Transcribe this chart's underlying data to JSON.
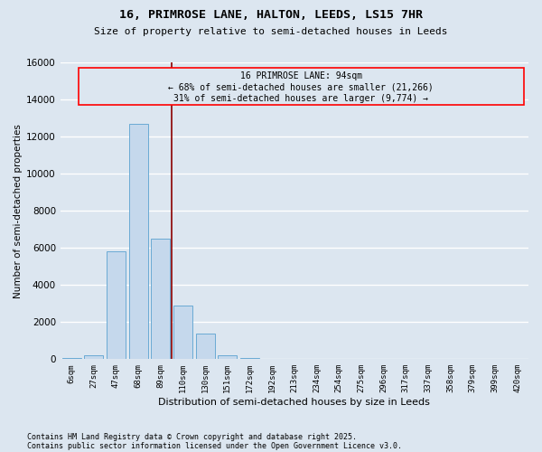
{
  "title1": "16, PRIMROSE LANE, HALTON, LEEDS, LS15 7HR",
  "title2": "Size of property relative to semi-detached houses in Leeds",
  "xlabel": "Distribution of semi-detached houses by size in Leeds",
  "ylabel": "Number of semi-detached properties",
  "categories": [
    "6sqm",
    "27sqm",
    "47sqm",
    "68sqm",
    "89sqm",
    "110sqm",
    "130sqm",
    "151sqm",
    "172sqm",
    "192sqm",
    "213sqm",
    "234sqm",
    "254sqm",
    "275sqm",
    "296sqm",
    "317sqm",
    "337sqm",
    "358sqm",
    "379sqm",
    "399sqm",
    "420sqm"
  ],
  "values": [
    50,
    200,
    5800,
    12700,
    6500,
    2900,
    1400,
    200,
    80,
    30,
    15,
    8,
    4,
    2,
    1,
    1,
    0,
    0,
    0,
    0,
    0
  ],
  "bar_color": "#c5d8ec",
  "bar_edge_color": "#6aaad4",
  "property_line_x": 4.5,
  "property_label": "16 PRIMROSE LANE: 94sqm",
  "annotation_line1": "← 68% of semi-detached houses are smaller (21,266)",
  "annotation_line2": "31% of semi-detached houses are larger (9,774) →",
  "annotation_box_color": "red",
  "line_color": "#8b0000",
  "ylim": [
    0,
    16000
  ],
  "yticks": [
    0,
    2000,
    4000,
    6000,
    8000,
    10000,
    12000,
    14000,
    16000
  ],
  "footnote1": "Contains HM Land Registry data © Crown copyright and database right 2025.",
  "footnote2": "Contains public sector information licensed under the Open Government Licence v3.0.",
  "bg_color": "#dce6f0",
  "grid_color": "#ffffff"
}
